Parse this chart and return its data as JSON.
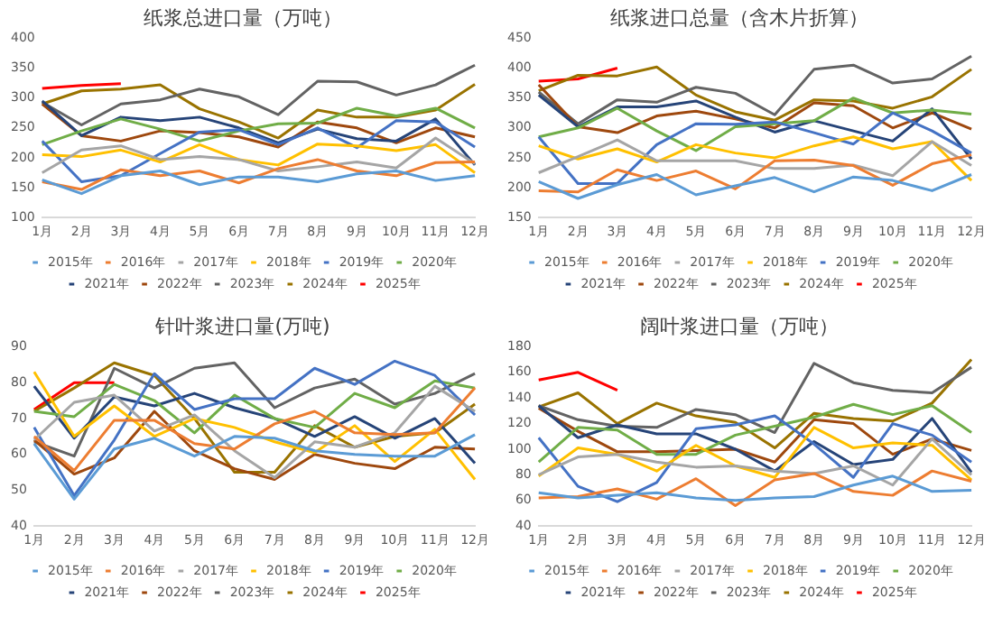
{
  "chart_data": [
    {
      "type": "line",
      "title": "纸浆总进口量（万吨）",
      "categories": [
        "1月",
        "2月",
        "3月",
        "4月",
        "5月",
        "6月",
        "7月",
        "8月",
        "9月",
        "10月",
        "11月",
        "12月"
      ],
      "ylim": [
        100,
        400
      ],
      "yticks": [
        100,
        150,
        200,
        250,
        300,
        350,
        400
      ],
      "legend": "bottom",
      "marker": "none",
      "line_style": "solid",
      "series": [
        {
          "name": "2015年",
          "color": "#5b9bd5",
          "values": [
            163,
            140,
            170,
            178,
            155,
            168,
            168,
            160,
            173,
            178,
            162,
            170
          ]
        },
        {
          "name": "2016年",
          "color": "#ed7d31",
          "values": [
            160,
            147,
            180,
            170,
            178,
            158,
            182,
            197,
            178,
            170,
            192,
            193
          ]
        },
        {
          "name": "2017年",
          "color": "#a5a5a5",
          "values": [
            175,
            213,
            220,
            197,
            202,
            197,
            178,
            185,
            193,
            183,
            233,
            190
          ]
        },
        {
          "name": "2018年",
          "color": "#ffc000",
          "values": [
            205,
            202,
            213,
            193,
            222,
            197,
            188,
            223,
            220,
            212,
            222,
            175
          ]
        },
        {
          "name": "2019年",
          "color": "#4472c4",
          "values": [
            228,
            160,
            170,
            207,
            243,
            247,
            222,
            250,
            217,
            262,
            260,
            218
          ]
        },
        {
          "name": "2020年",
          "color": "#70ad47",
          "values": [
            222,
            245,
            265,
            248,
            228,
            245,
            257,
            258,
            283,
            270,
            283,
            250
          ]
        },
        {
          "name": "2021年",
          "color": "#264478",
          "values": [
            295,
            237,
            268,
            262,
            268,
            250,
            225,
            248,
            232,
            228,
            265,
            188
          ]
        },
        {
          "name": "2022年",
          "color": "#9e480e",
          "values": [
            290,
            237,
            228,
            245,
            242,
            235,
            218,
            260,
            250,
            225,
            250,
            235
          ]
        },
        {
          "name": "2023年",
          "color": "#636363",
          "values": [
            293,
            255,
            290,
            297,
            315,
            302,
            272,
            328,
            327,
            305,
            322,
            355
          ]
        },
        {
          "name": "2024年",
          "color": "#997300",
          "values": [
            290,
            312,
            315,
            322,
            282,
            260,
            233,
            280,
            268,
            268,
            280,
            323
          ]
        },
        {
          "name": "2025年",
          "color": "#ff0000",
          "values": [
            316,
            321,
            324,
            null,
            null,
            null,
            null,
            null,
            null,
            null,
            null,
            null
          ]
        }
      ]
    },
    {
      "type": "line",
      "title": "纸浆进口总量（含木片折算）",
      "categories": [
        "1月",
        "2月",
        "3月",
        "4月",
        "5月",
        "6月",
        "7月",
        "8月",
        "9月",
        "10月",
        "11月",
        "12月"
      ],
      "ylim": [
        150,
        450
      ],
      "yticks": [
        150,
        200,
        250,
        300,
        350,
        400,
        450
      ],
      "legend": "bottom",
      "marker": "none",
      "line_style": "solid",
      "series": [
        {
          "name": "2015年",
          "color": "#5b9bd5",
          "values": [
            210,
            182,
            205,
            222,
            188,
            203,
            217,
            193,
            218,
            212,
            195,
            222
          ]
        },
        {
          "name": "2016年",
          "color": "#ed7d31",
          "values": [
            195,
            193,
            230,
            212,
            228,
            198,
            245,
            246,
            237,
            204,
            240,
            255
          ]
        },
        {
          "name": "2017年",
          "color": "#a5a5a5",
          "values": [
            225,
            252,
            280,
            245,
            245,
            245,
            232,
            232,
            238,
            220,
            277,
            237
          ]
        },
        {
          "name": "2018年",
          "color": "#ffc000",
          "values": [
            270,
            248,
            265,
            243,
            272,
            258,
            250,
            270,
            285,
            265,
            277,
            212
          ]
        },
        {
          "name": "2019年",
          "color": "#4472c4",
          "values": [
            285,
            207,
            207,
            272,
            307,
            306,
            310,
            292,
            273,
            325,
            295,
            258
          ]
        },
        {
          "name": "2020年",
          "color": "#70ad47",
          "values": [
            285,
            300,
            333,
            295,
            262,
            302,
            307,
            312,
            350,
            325,
            330,
            323
          ]
        },
        {
          "name": "2021年",
          "color": "#264478",
          "values": [
            355,
            302,
            335,
            335,
            345,
            318,
            293,
            312,
            295,
            278,
            332,
            248
          ]
        },
        {
          "name": "2022年",
          "color": "#9e480e",
          "values": [
            372,
            302,
            292,
            320,
            328,
            315,
            300,
            342,
            337,
            300,
            325,
            298
          ]
        },
        {
          "name": "2023年",
          "color": "#636363",
          "values": [
            360,
            307,
            347,
            343,
            368,
            358,
            322,
            398,
            405,
            375,
            382,
            420
          ]
        },
        {
          "name": "2024年",
          "color": "#997300",
          "values": [
            362,
            388,
            387,
            402,
            355,
            327,
            313,
            347,
            345,
            333,
            352,
            398
          ]
        },
        {
          "name": "2025年",
          "color": "#ff0000",
          "values": [
            378,
            382,
            400,
            null,
            null,
            null,
            null,
            null,
            null,
            null,
            null,
            null
          ]
        }
      ]
    },
    {
      "type": "line",
      "title": "针叶浆进口量(万吨)",
      "categories": [
        "1月",
        "2月",
        "3月",
        "4月",
        "5月",
        "6月",
        "7月",
        "8月",
        "9月",
        "10月",
        "11月",
        "12月"
      ],
      "ylim": [
        40,
        90
      ],
      "yticks": [
        40,
        50,
        60,
        70,
        80,
        90
      ],
      "legend": "bottom",
      "marker": "none",
      "line_style": "solid",
      "series": [
        {
          "name": "2015年",
          "color": "#5b9bd5",
          "values": [
            63,
            47.5,
            61.5,
            64.5,
            59.5,
            65,
            64.5,
            61,
            60,
            59.5,
            59.5,
            65.5
          ]
        },
        {
          "name": "2016年",
          "color": "#ed7d31",
          "values": [
            65,
            55.5,
            69.5,
            69.5,
            63,
            61.5,
            68.5,
            72,
            66,
            65.5,
            66,
            78.5
          ]
        },
        {
          "name": "2017年",
          "color": "#a5a5a5",
          "values": [
            64,
            74.5,
            76.5,
            66.5,
            71,
            61,
            53.5,
            63.5,
            62,
            66,
            79,
            72
          ]
        },
        {
          "name": "2018年",
          "color": "#ffc000",
          "values": [
            83,
            65,
            73.5,
            65,
            70,
            67.5,
            63.5,
            60.5,
            68,
            58,
            67,
            53
          ]
        },
        {
          "name": "2019年",
          "color": "#4472c4",
          "values": [
            67.5,
            48.5,
            64,
            82.5,
            72.5,
            75.5,
            75.5,
            84,
            79.5,
            86,
            82,
            71
          ]
        },
        {
          "name": "2020年",
          "color": "#70ad47",
          "values": [
            72,
            70.5,
            79.5,
            75,
            66,
            76.5,
            70,
            67.5,
            77,
            73,
            80.5,
            78.5
          ]
        },
        {
          "name": "2021年",
          "color": "#264478",
          "values": [
            79,
            64.5,
            76,
            73.5,
            77,
            73,
            70,
            65,
            70.5,
            64.5,
            70,
            57.5
          ]
        },
        {
          "name": "2022年",
          "color": "#9e480e",
          "values": [
            64,
            54.5,
            59,
            72,
            61,
            56,
            53,
            60,
            57.5,
            56,
            62,
            61.5
          ]
        },
        {
          "name": "2023年",
          "color": "#636363",
          "values": [
            63.5,
            59.5,
            84,
            78.5,
            84,
            85.5,
            73,
            78.5,
            81,
            74,
            77,
            82.5
          ]
        },
        {
          "name": "2024年",
          "color": "#997300",
          "values": [
            72,
            78.5,
            85.5,
            82,
            70,
            55,
            55,
            68,
            62,
            65,
            66,
            74
          ]
        },
        {
          "name": "2025年",
          "color": "#ff0000",
          "values": [
            72.5,
            80,
            80,
            null,
            null,
            null,
            null,
            null,
            null,
            null,
            null,
            null
          ]
        }
      ]
    },
    {
      "type": "line",
      "title": "阔叶浆进口量（万吨）",
      "categories": [
        "1月",
        "2月",
        "3月",
        "4月",
        "5月",
        "6月",
        "7月",
        "8月",
        "9月",
        "10月",
        "11月",
        "12月"
      ],
      "ylim": [
        40,
        180
      ],
      "yticks": [
        40,
        60,
        80,
        100,
        120,
        140,
        160,
        180
      ],
      "legend": "bottom",
      "marker": "none",
      "line_style": "solid",
      "series": [
        {
          "name": "2015年",
          "color": "#5b9bd5",
          "values": [
            66,
            62,
            64,
            66,
            62,
            60,
            62,
            63,
            72,
            79,
            67,
            68
          ]
        },
        {
          "name": "2016年",
          "color": "#ed7d31",
          "values": [
            62,
            63,
            69,
            61,
            77,
            56,
            76,
            81,
            67,
            64,
            83,
            75
          ]
        },
        {
          "name": "2017年",
          "color": "#a5a5a5",
          "values": [
            80,
            94,
            96,
            90,
            86,
            87,
            83,
            81,
            87,
            72,
            108,
            80
          ]
        },
        {
          "name": "2018年",
          "color": "#ffc000",
          "values": [
            79,
            101,
            96,
            83,
            103,
            87,
            78,
            117,
            101,
            105,
            103,
            76
          ]
        },
        {
          "name": "2019年",
          "color": "#4472c4",
          "values": [
            109,
            71,
            59,
            74,
            116,
            119,
            126,
            104,
            78,
            120,
            111,
            90
          ]
        },
        {
          "name": "2020年",
          "color": "#70ad47",
          "values": [
            90,
            117,
            115,
            96,
            96,
            111,
            118,
            125,
            135,
            127,
            134,
            113
          ]
        },
        {
          "name": "2021年",
          "color": "#264478",
          "values": [
            134,
            109,
            119,
            112,
            112,
            100,
            83,
            106,
            88,
            92,
            124,
            82
          ]
        },
        {
          "name": "2022年",
          "color": "#9e480e",
          "values": [
            132,
            114,
            98,
            98,
            99,
            100,
            90,
            123,
            120,
            96,
            108,
            99
          ]
        },
        {
          "name": "2023年",
          "color": "#636363",
          "values": [
            134,
            123,
            118,
            117,
            131,
            127,
            113,
            167,
            152,
            146,
            144,
            164
          ]
        },
        {
          "name": "2024年",
          "color": "#997300",
          "values": [
            133,
            144,
            120,
            136,
            126,
            121,
            101,
            128,
            124,
            122,
            136,
            170
          ]
        },
        {
          "name": "2025年",
          "color": "#ff0000",
          "values": [
            154,
            160,
            146,
            null,
            null,
            null,
            null,
            null,
            null,
            null,
            null,
            null
          ]
        }
      ]
    }
  ]
}
